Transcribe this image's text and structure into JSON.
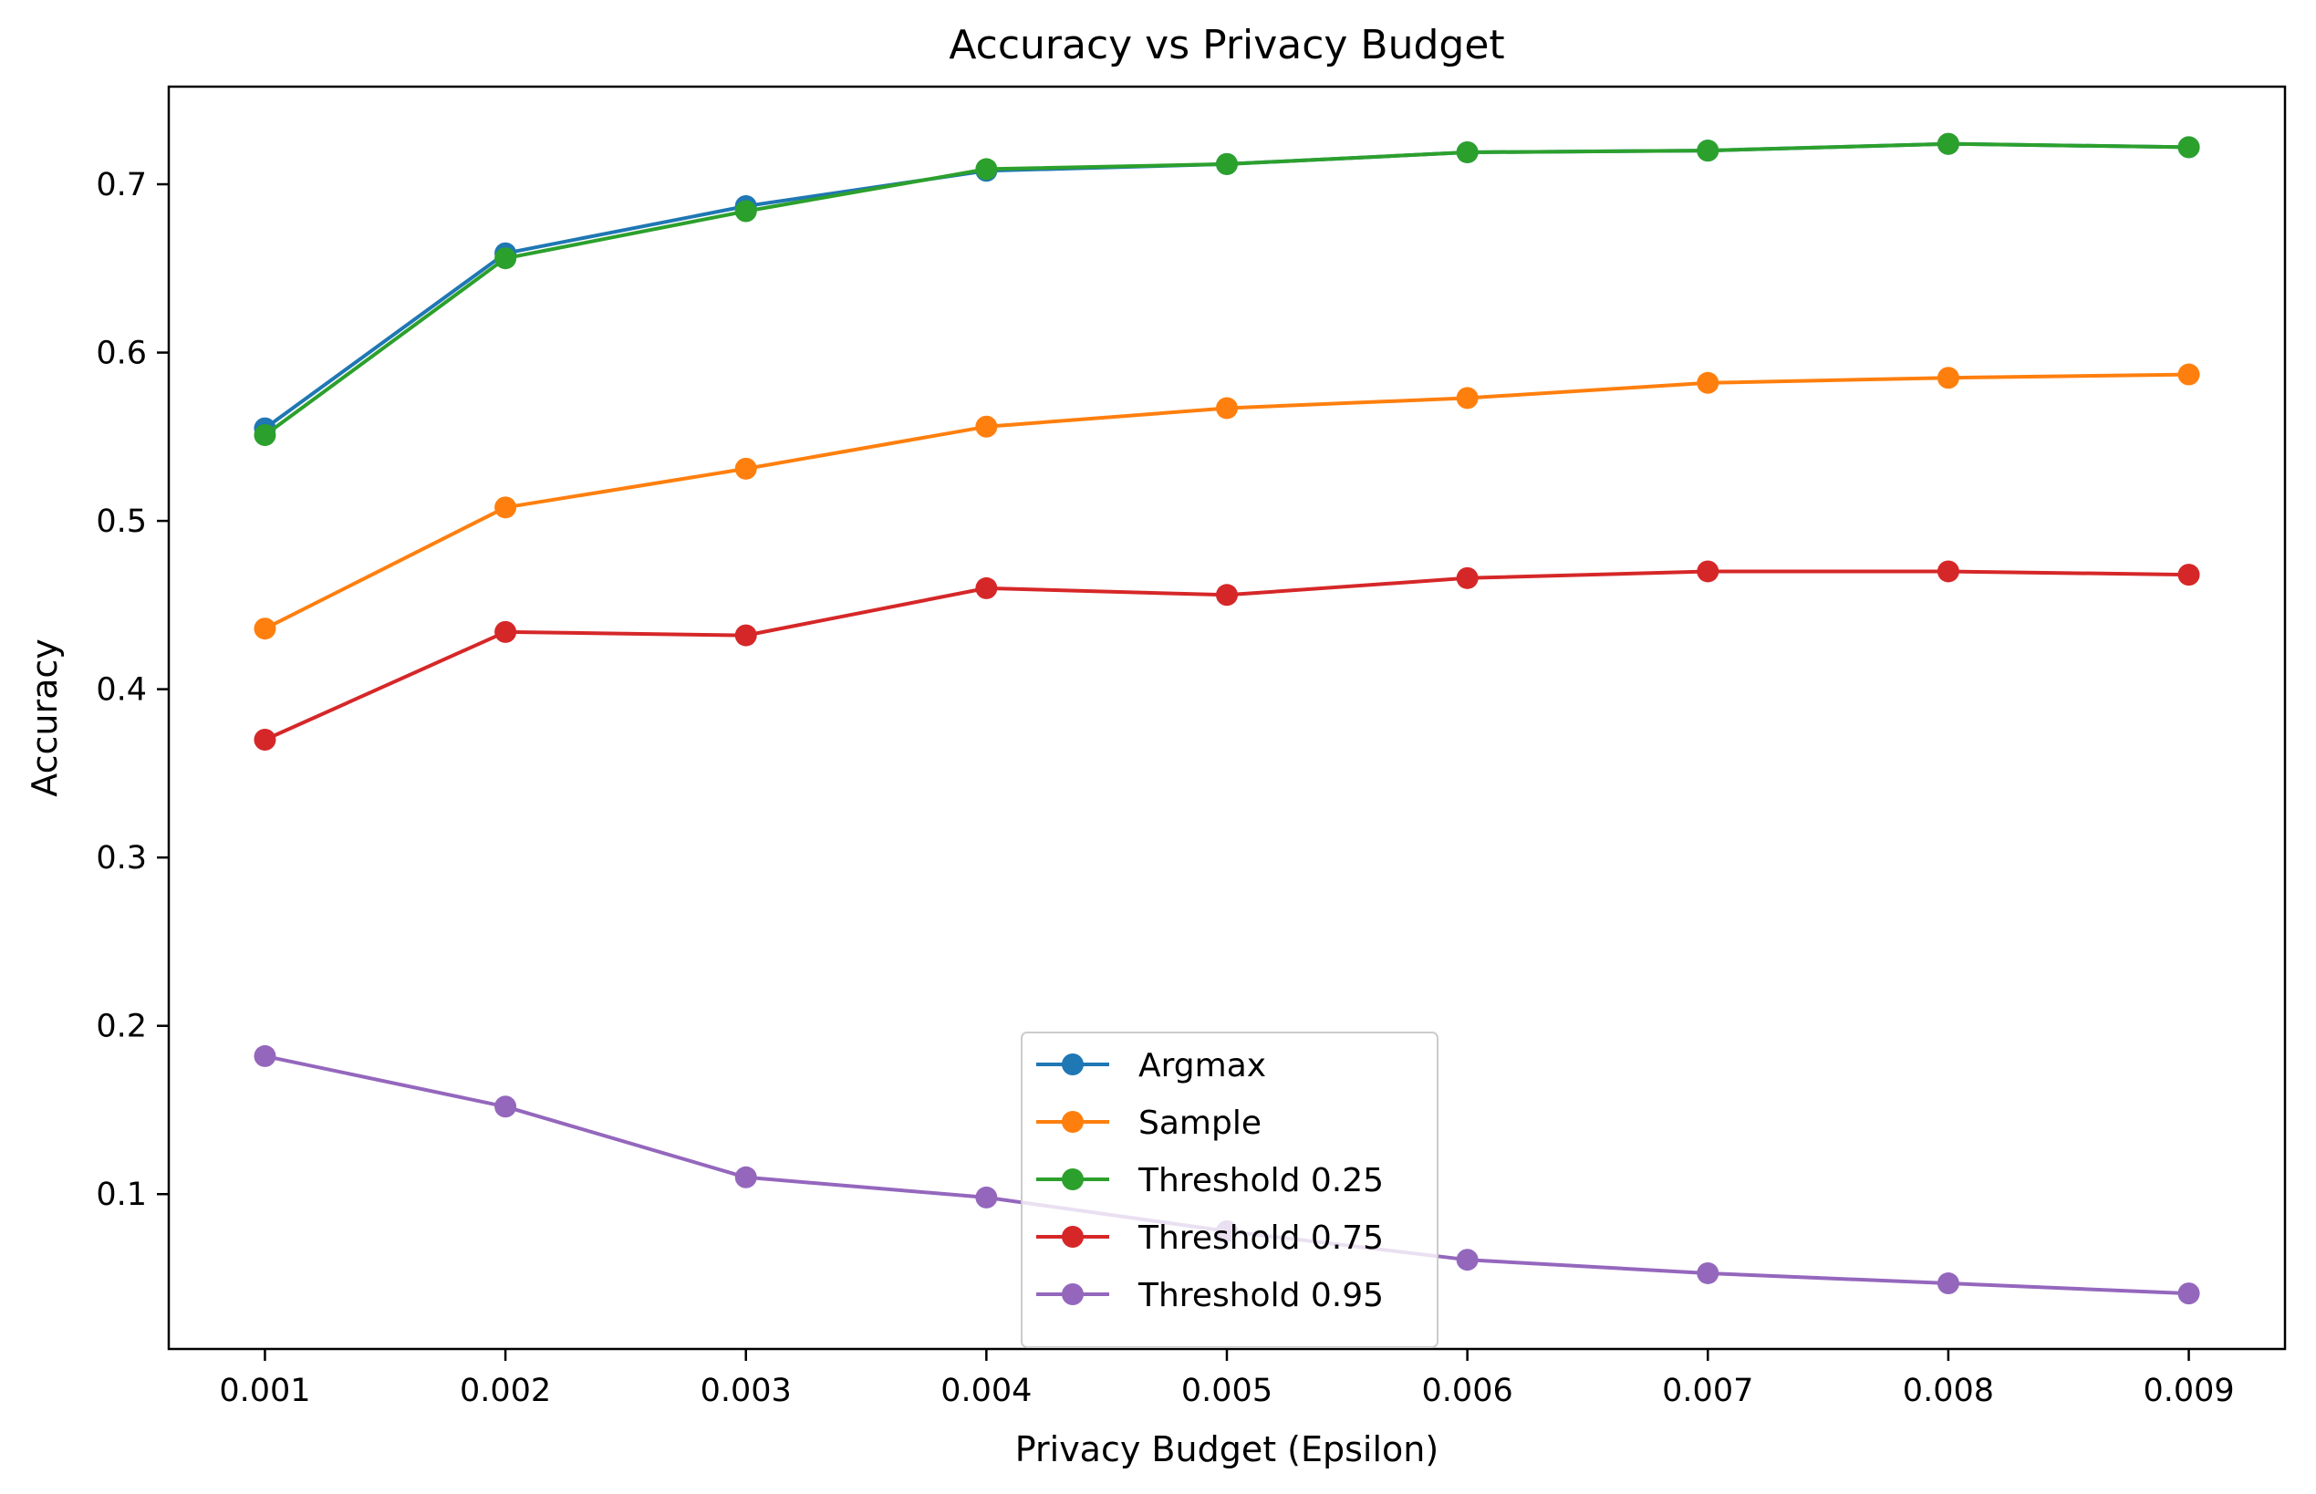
{
  "chart_data": {
    "type": "line",
    "title": "Accuracy vs Privacy Budget",
    "xlabel": "Privacy Budget (Epsilon)",
    "ylabel": "Accuracy",
    "x": [
      0.001,
      0.002,
      0.003,
      0.004,
      0.005,
      0.006,
      0.007,
      0.008,
      0.009
    ],
    "x_tick_labels": [
      "0.001",
      "0.002",
      "0.003",
      "0.004",
      "0.005",
      "0.006",
      "0.007",
      "0.008",
      "0.009"
    ],
    "y_ticks": [
      0.1,
      0.2,
      0.3,
      0.4,
      0.5,
      0.6,
      0.7
    ],
    "y_tick_labels": [
      "0.1",
      "0.2",
      "0.3",
      "0.4",
      "0.5",
      "0.6",
      "0.7"
    ],
    "xlim": [
      0.0006,
      0.0094
    ],
    "ylim": [
      0.008,
      0.758
    ],
    "grid": false,
    "legend_position": "bottom-center",
    "series": [
      {
        "name": "Argmax",
        "color": "#1f77b4",
        "values": [
          0.555,
          0.659,
          0.687,
          0.708,
          0.712,
          0.719,
          0.72,
          0.724,
          0.722
        ]
      },
      {
        "name": "Sample",
        "color": "#ff7f0e",
        "values": [
          0.436,
          0.508,
          0.531,
          0.556,
          0.567,
          0.573,
          0.582,
          0.585,
          0.587
        ]
      },
      {
        "name": "Threshold 0.25",
        "color": "#2ca02c",
        "values": [
          0.551,
          0.656,
          0.684,
          0.709,
          0.712,
          0.719,
          0.72,
          0.724,
          0.722
        ]
      },
      {
        "name": "Threshold 0.75",
        "color": "#d62728",
        "values": [
          0.37,
          0.434,
          0.432,
          0.46,
          0.456,
          0.466,
          0.47,
          0.47,
          0.468
        ]
      },
      {
        "name": "Threshold 0.95",
        "color": "#9467bd",
        "values": [
          0.182,
          0.152,
          0.11,
          0.098,
          0.078,
          0.061,
          0.053,
          0.047,
          0.041
        ]
      }
    ]
  }
}
